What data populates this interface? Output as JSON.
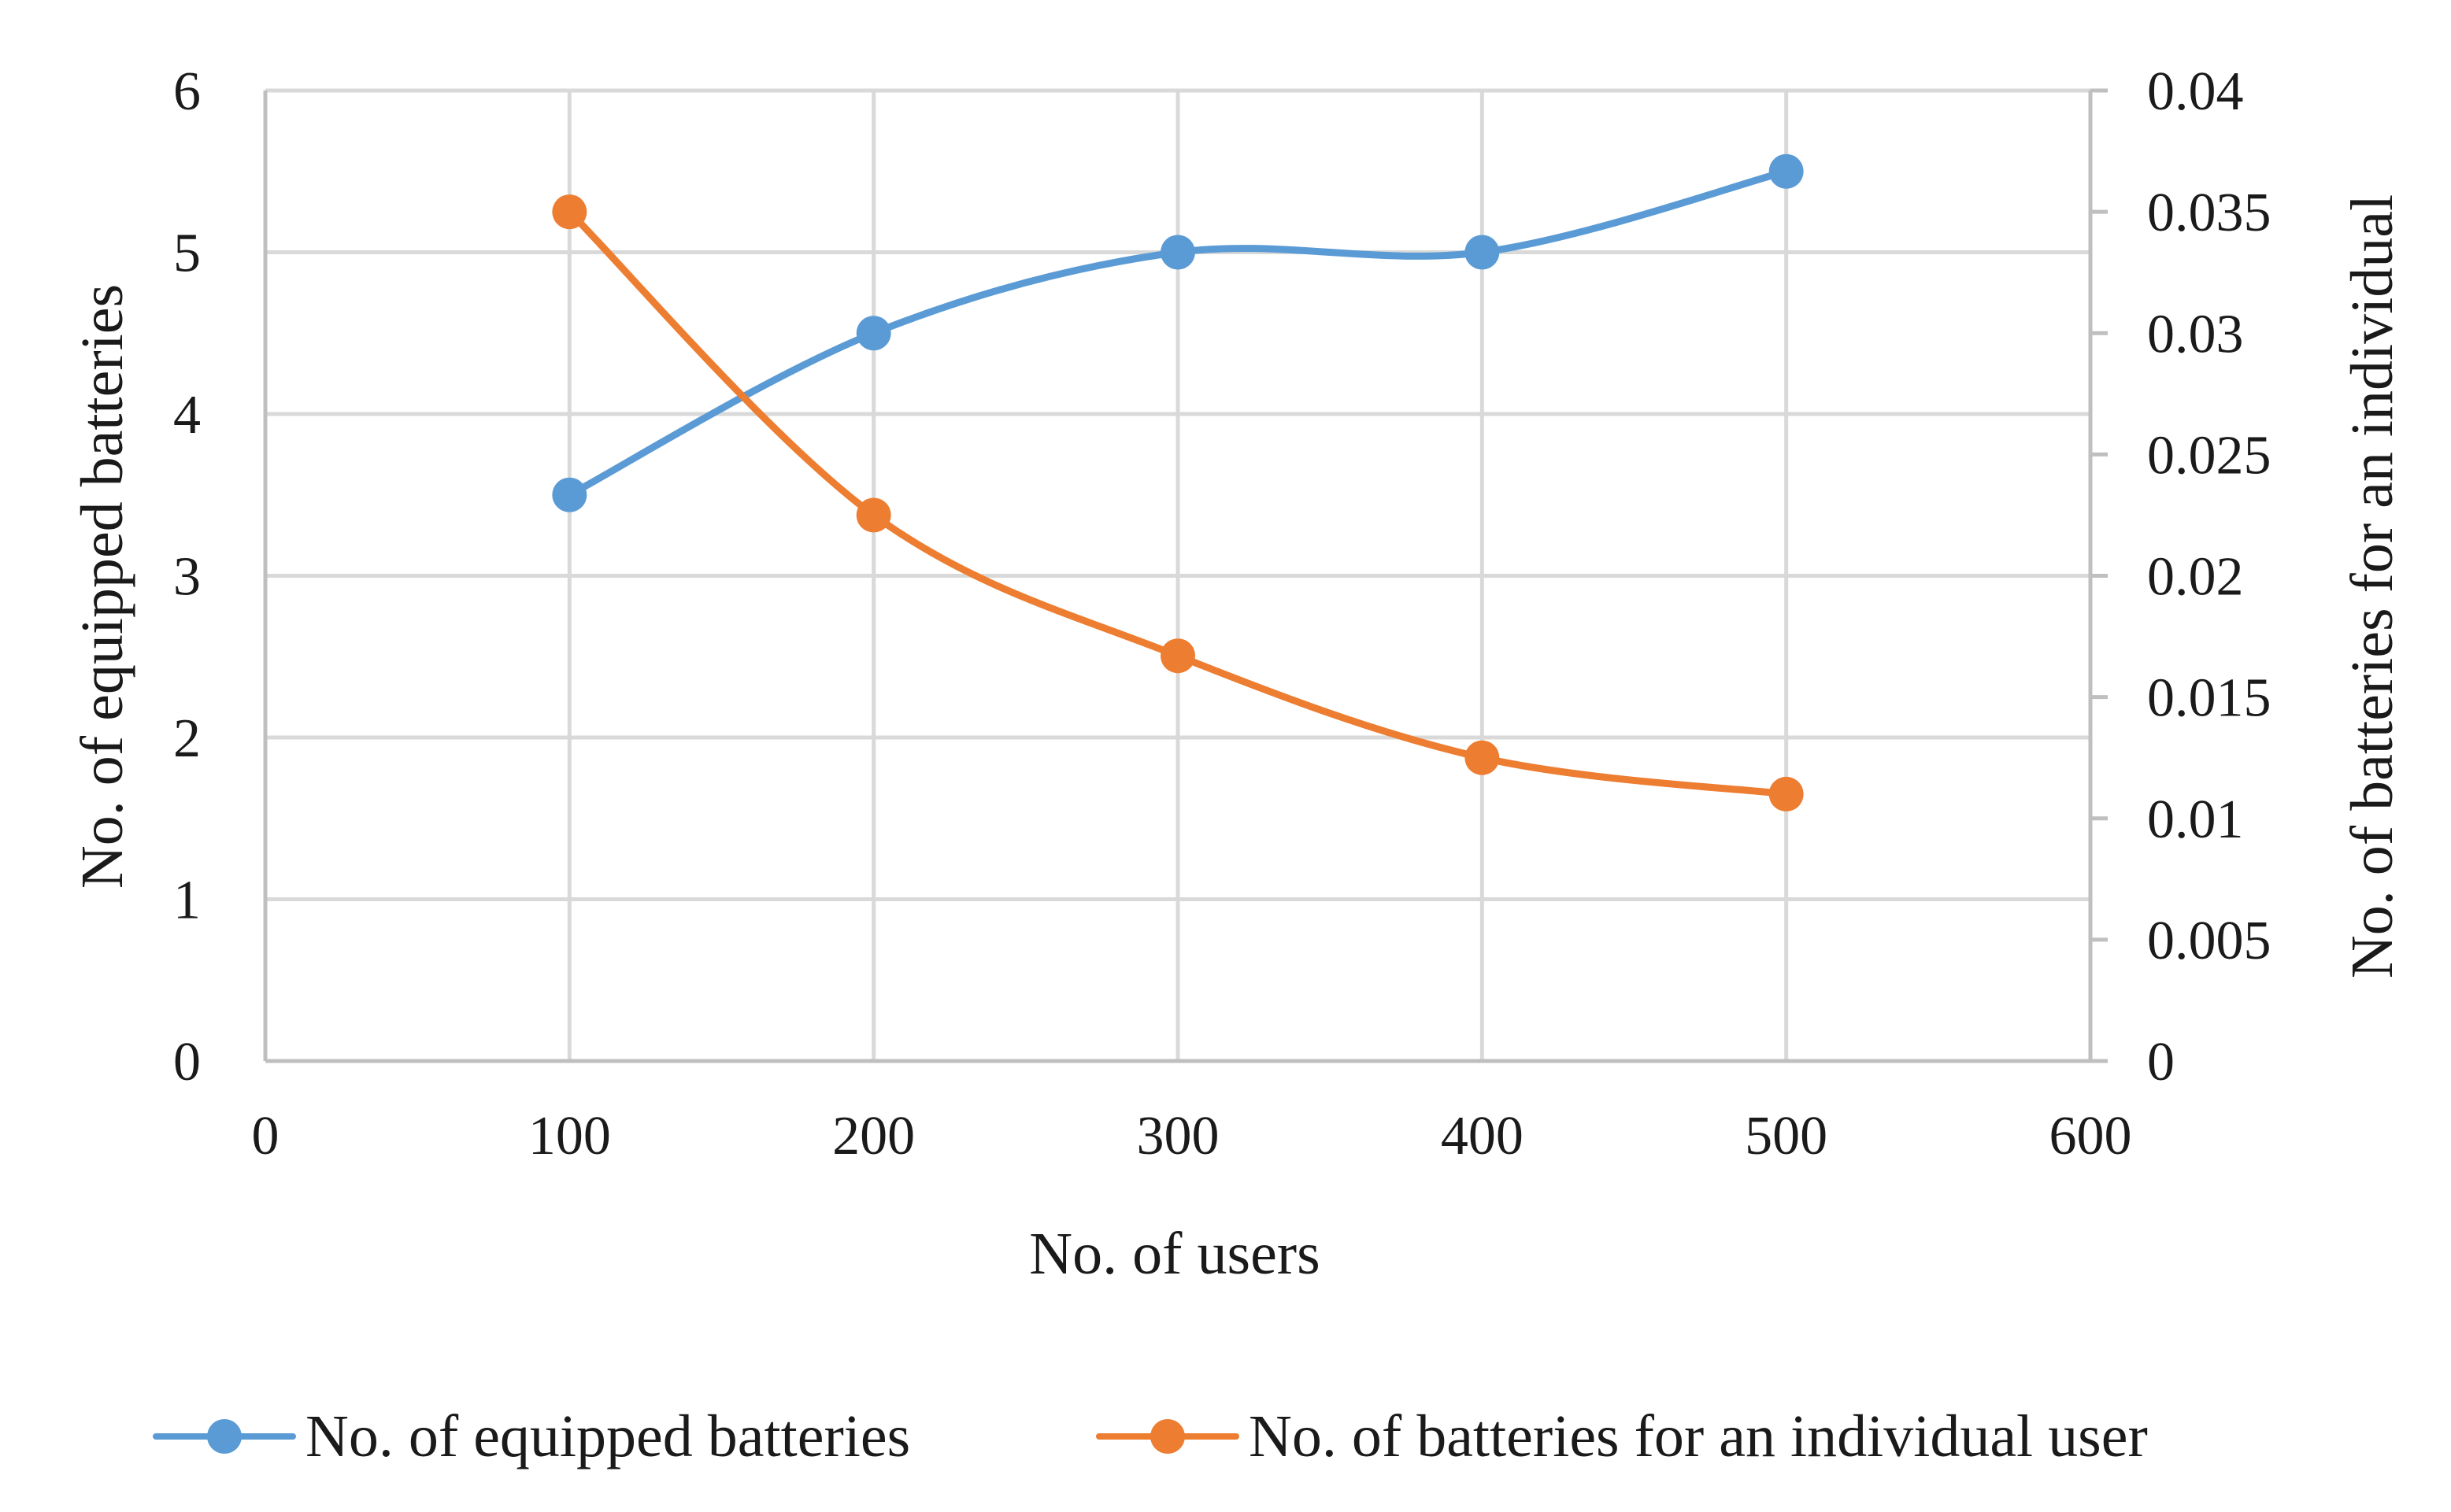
{
  "chart_data": {
    "type": "line",
    "title": "",
    "xlabel": "No. of users",
    "ylabel": "No. of equipped batteries",
    "y2label": "No. of batteries for an individual",
    "xlim": [
      0,
      600
    ],
    "ylim": [
      0,
      6
    ],
    "y2lim": [
      0,
      0.04
    ],
    "x_ticks": [
      "0",
      "100",
      "200",
      "300",
      "400",
      "500",
      "600"
    ],
    "y_ticks": [
      "0",
      "1",
      "2",
      "3",
      "4",
      "5",
      "6"
    ],
    "y2_ticks": [
      "0",
      "0.005",
      "0.01",
      "0.015",
      "0.02",
      "0.025",
      "0.03",
      "0.035",
      "0.04"
    ],
    "x_tick_values": [
      0,
      100,
      200,
      300,
      400,
      500,
      600
    ],
    "y_tick_values": [
      0,
      1,
      2,
      3,
      4,
      5,
      6
    ],
    "y2_tick_values": [
      0,
      0.005,
      0.01,
      0.015,
      0.02,
      0.025,
      0.03,
      0.035,
      0.04
    ],
    "grid": true,
    "legend_position": "bottom",
    "smooth": true,
    "x": [
      100,
      200,
      300,
      400,
      500
    ],
    "series": [
      {
        "name": "No. of equipped batteries",
        "axis": "left",
        "color": "#5b9bd5",
        "values": [
          3.5,
          4.5,
          5.0,
          5.0,
          5.5
        ]
      },
      {
        "name": "No. of batteries for an individual user",
        "axis": "right",
        "color": "#ed7d31",
        "values": [
          0.035,
          0.0225,
          0.0167,
          0.0125,
          0.011
        ]
      }
    ]
  }
}
